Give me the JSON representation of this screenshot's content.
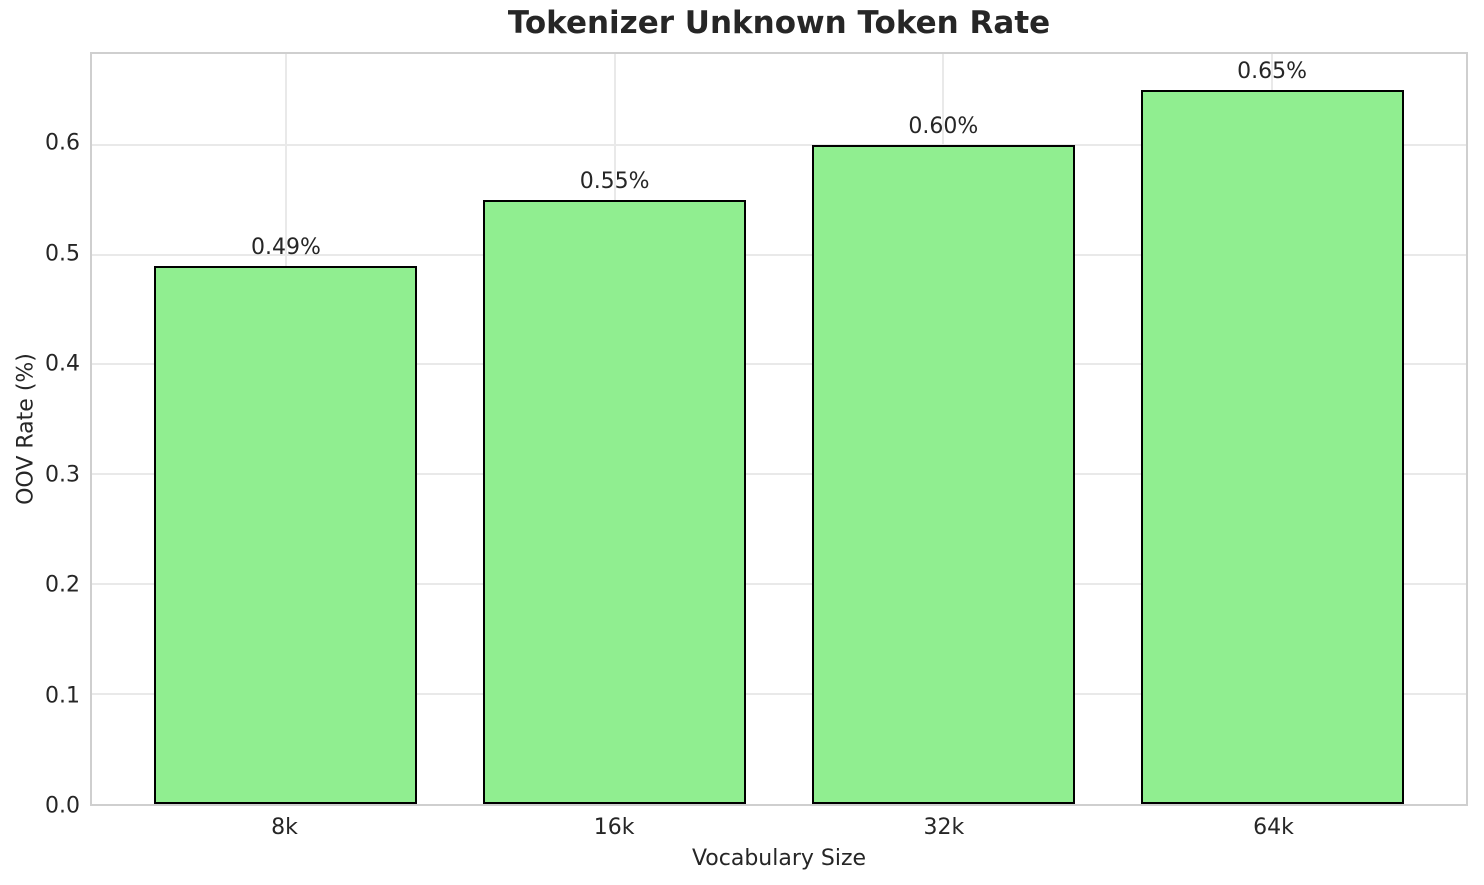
{
  "chart_data": {
    "type": "bar",
    "title": "Tokenizer Unknown Token Rate",
    "xlabel": "Vocabulary Size",
    "ylabel": "OOV Rate (%)",
    "categories": [
      "8k",
      "16k",
      "32k",
      "64k"
    ],
    "values": [
      0.49,
      0.55,
      0.6,
      0.65
    ],
    "bar_labels": [
      "0.49%",
      "0.55%",
      "0.60%",
      "0.65%"
    ],
    "yticks": [
      0.0,
      0.1,
      0.2,
      0.3,
      0.4,
      0.5,
      0.6
    ],
    "ytick_labels": [
      "0.0",
      "0.1",
      "0.2",
      "0.3",
      "0.4",
      "0.5",
      "0.6"
    ],
    "ylim": [
      0,
      0.6825
    ],
    "grid": true,
    "legend": "none",
    "bar_color": "#90EE90",
    "bar_edge_color": "#000000"
  }
}
